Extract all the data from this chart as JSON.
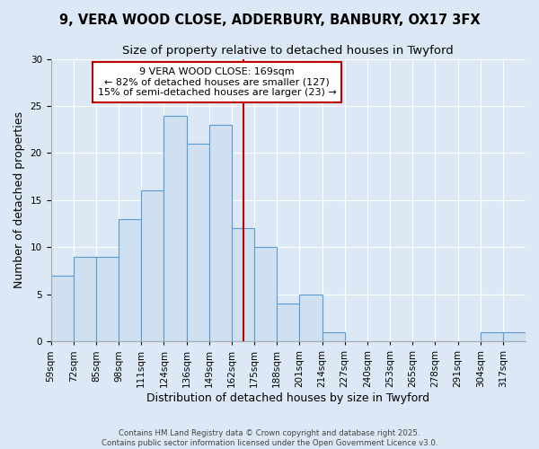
{
  "title": "9, VERA WOOD CLOSE, ADDERBURY, BANBURY, OX17 3FX",
  "subtitle": "Size of property relative to detached houses in Twyford",
  "xlabel": "Distribution of detached houses by size in Twyford",
  "ylabel": "Number of detached properties",
  "bin_labels": [
    "59sqm",
    "72sqm",
    "85sqm",
    "98sqm",
    "111sqm",
    "124sqm",
    "136sqm",
    "149sqm",
    "162sqm",
    "175sqm",
    "188sqm",
    "201sqm",
    "214sqm",
    "227sqm",
    "240sqm",
    "253sqm",
    "265sqm",
    "278sqm",
    "291sqm",
    "304sqm",
    "317sqm"
  ],
  "counts": [
    7,
    9,
    9,
    13,
    16,
    24,
    21,
    23,
    12,
    10,
    4,
    5,
    1,
    0,
    0,
    0,
    0,
    0,
    0,
    1,
    1
  ],
  "bar_facecolor": "#cfe0f0",
  "bar_edgecolor": "#5b9bd5",
  "vline_index": 8.46,
  "vline_color": "#c00000",
  "annotation_title": "9 VERA WOOD CLOSE: 169sqm",
  "annotation_line1": "← 82% of detached houses are smaller (127)",
  "annotation_line2": "15% of semi-detached houses are larger (23) →",
  "annotation_box_edgecolor": "#c00000",
  "annotation_box_facecolor": "#ffffff",
  "ylim": [
    0,
    30
  ],
  "yticks": [
    0,
    5,
    10,
    15,
    20,
    25,
    30
  ],
  "background_color": "#dce8f5",
  "plot_bg_color": "#dce8f5",
  "footer1": "Contains HM Land Registry data © Crown copyright and database right 2025.",
  "footer2": "Contains public sector information licensed under the Open Government Licence v3.0.",
  "title_fontsize": 10.5,
  "subtitle_fontsize": 9.5,
  "axis_label_fontsize": 9,
  "tick_fontsize": 7.5,
  "annotation_fontsize": 8
}
